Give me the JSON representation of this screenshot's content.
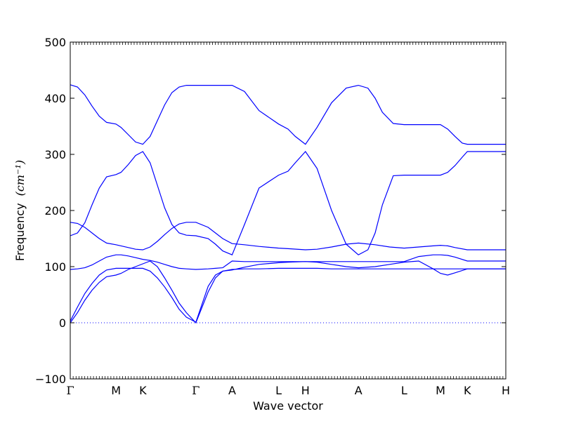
{
  "chart_data": {
    "type": "line",
    "title": "",
    "xlabel": "Wave vector",
    "ylabel": "Frequency",
    "ylabel_unit": "(cm⁻¹)",
    "ylim": [
      -100,
      500
    ],
    "yticks": [
      -100,
      0,
      100,
      200,
      300,
      400,
      500
    ],
    "grid": false,
    "line_color": "#0000ff",
    "zero_line": {
      "value": 0,
      "style": "dotted"
    },
    "kpoint_labels": [
      "Γ",
      "M",
      "K",
      "Γ",
      "A",
      "L",
      "H",
      "A",
      "L",
      "M",
      "K",
      "H"
    ],
    "kpoint_x": [
      0.0,
      0.63,
      1.0,
      1.73,
      2.23,
      2.87,
      3.24,
      3.97,
      4.6,
      5.1,
      5.47,
      6.0
    ],
    "xlim": [
      0.0,
      6.0
    ],
    "series": [
      {
        "x": [
          0.0,
          0.1,
          0.2,
          0.3,
          0.4,
          0.5,
          0.63,
          0.7,
          0.8,
          0.9,
          1.0,
          1.1,
          1.2,
          1.3,
          1.4,
          1.5,
          1.6,
          1.73,
          1.9,
          2.0,
          2.1,
          2.23,
          2.4,
          2.6,
          2.87,
          3.0,
          3.1,
          3.24,
          3.4,
          3.6,
          3.8,
          3.97,
          4.1,
          4.2,
          4.3,
          4.45,
          4.6,
          4.8,
          5.0,
          5.1,
          5.2,
          5.3,
          5.4,
          5.47,
          5.6,
          5.8,
          6.0
        ],
        "y": [
          424,
          420,
          406,
          386,
          368,
          357,
          354,
          348,
          335,
          322,
          318,
          332,
          360,
          388,
          410,
          420,
          423,
          423,
          423,
          423,
          423,
          423,
          412,
          378,
          354,
          345,
          332,
          318,
          348,
          392,
          418,
          423,
          418,
          400,
          375,
          355,
          353,
          353,
          353,
          353,
          345,
          332,
          320,
          318,
          318,
          318,
          318
        ]
      },
      {
        "x": [
          0.0,
          0.1,
          0.2,
          0.3,
          0.4,
          0.5,
          0.63,
          0.7,
          0.8,
          0.9,
          1.0,
          1.1,
          1.2,
          1.3,
          1.4,
          1.5,
          1.6,
          1.73,
          1.9,
          2.0,
          2.1,
          2.23,
          2.4,
          2.6,
          2.87,
          3.0,
          3.1,
          3.24,
          3.4,
          3.6,
          3.8,
          3.97,
          4.1,
          4.2,
          4.3,
          4.45,
          4.6,
          4.8,
          5.0,
          5.1,
          5.2,
          5.3,
          5.4,
          5.47,
          5.6,
          5.8,
          6.0
        ],
        "y": [
          155,
          160,
          178,
          210,
          240,
          260,
          264,
          268,
          282,
          298,
          305,
          285,
          245,
          205,
          175,
          160,
          156,
          155,
          150,
          140,
          128,
          121,
          175,
          240,
          263,
          270,
          285,
          305,
          275,
          200,
          140,
          121,
          130,
          160,
          210,
          262,
          263,
          263,
          263,
          263,
          268,
          280,
          295,
          305,
          305,
          305,
          305
        ]
      },
      {
        "x": [
          0.0,
          0.1,
          0.2,
          0.3,
          0.4,
          0.5,
          0.63,
          0.7,
          0.8,
          0.9,
          1.0,
          1.1,
          1.2,
          1.3,
          1.4,
          1.5,
          1.6,
          1.73,
          1.9,
          2.0,
          2.1,
          2.23,
          2.4,
          2.6,
          2.87,
          3.0,
          3.24,
          3.4,
          3.6,
          3.8,
          3.97,
          4.2,
          4.4,
          4.6,
          4.8,
          5.0,
          5.1,
          5.2,
          5.3,
          5.47,
          5.6,
          5.8,
          6.0
        ],
        "y": [
          179,
          177,
          170,
          160,
          150,
          142,
          139,
          137,
          134,
          131,
          130,
          135,
          145,
          157,
          168,
          176,
          179,
          179,
          170,
          160,
          150,
          141,
          139,
          136,
          133,
          132,
          130,
          131,
          135,
          140,
          142,
          139,
          135,
          133,
          135,
          137,
          138,
          137,
          134,
          130,
          130,
          130,
          130
        ]
      },
      {
        "x": [
          0.0,
          0.1,
          0.2,
          0.3,
          0.4,
          0.5,
          0.63,
          0.7,
          0.8,
          0.9,
          1.0,
          1.1,
          1.2,
          1.3,
          1.4,
          1.5,
          1.6,
          1.73,
          1.9,
          2.0,
          2.1,
          2.23,
          2.4,
          2.6,
          2.87,
          3.0,
          3.24,
          3.4,
          3.6,
          3.8,
          3.97,
          4.2,
          4.4,
          4.6,
          4.8,
          5.0,
          5.1,
          5.2,
          5.3,
          5.47,
          5.6,
          5.8,
          6.0
        ],
        "y": [
          95,
          96,
          98,
          103,
          110,
          117,
          121,
          121,
          119,
          116,
          113,
          111,
          108,
          104,
          100,
          97,
          96,
          95,
          96,
          97,
          98,
          110,
          109,
          109,
          109,
          109,
          109,
          109,
          109,
          109,
          109,
          109,
          109,
          109,
          118,
          121,
          121,
          120,
          117,
          110,
          110,
          110,
          110
        ]
      },
      {
        "x": [
          0.0,
          0.1,
          0.2,
          0.3,
          0.4,
          0.5,
          0.63,
          0.7,
          0.8,
          0.9,
          1.0,
          1.1,
          1.2,
          1.3,
          1.4,
          1.5,
          1.6,
          1.73,
          1.9,
          2.0,
          2.1,
          2.23,
          2.4,
          2.6,
          2.87,
          3.0,
          3.24,
          3.4,
          3.6,
          3.8,
          3.97,
          4.2,
          4.4,
          4.6,
          4.8,
          5.0,
          5.1,
          5.2,
          5.3,
          5.47,
          5.6,
          5.8,
          6.0
        ],
        "y": [
          3,
          28,
          52,
          70,
          85,
          94,
          97,
          97,
          97,
          97,
          97,
          92,
          80,
          64,
          45,
          24,
          10,
          1,
          65,
          85,
          92,
          94,
          99,
          104,
          107,
          108,
          109,
          108,
          104,
          100,
          98,
          100,
          104,
          108,
          110,
          96,
          88,
          85,
          89,
          96,
          96,
          96,
          96
        ]
      },
      {
        "x": [
          0.0,
          0.1,
          0.2,
          0.3,
          0.4,
          0.5,
          0.63,
          0.7,
          0.8,
          0.9,
          1.0,
          1.1,
          1.2,
          1.3,
          1.4,
          1.5,
          1.6,
          1.73,
          1.9,
          2.0,
          2.1,
          2.23,
          2.4,
          2.6,
          2.87,
          3.0,
          3.24,
          3.4,
          3.6,
          3.8,
          3.97,
          4.2,
          4.4,
          4.6,
          4.8,
          5.0,
          5.1,
          5.2,
          5.3,
          5.47,
          5.6,
          5.8,
          6.0
        ],
        "y": [
          0,
          18,
          40,
          58,
          72,
          82,
          85,
          88,
          95,
          100,
          105,
          110,
          100,
          80,
          58,
          35,
          18,
          0,
          55,
          80,
          92,
          95,
          96,
          96,
          97,
          97,
          97,
          97,
          96,
          96,
          96,
          96,
          96,
          96,
          96,
          96,
          96,
          96,
          96,
          96,
          96,
          96,
          96
        ]
      }
    ]
  }
}
